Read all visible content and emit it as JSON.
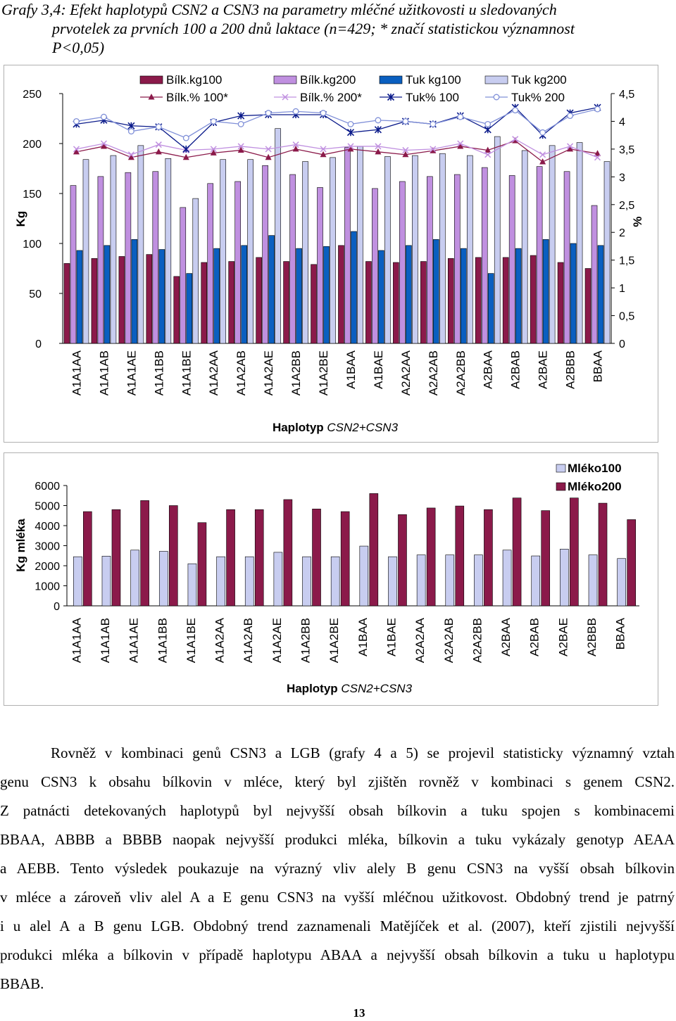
{
  "caption": {
    "line1": "Grafy 3,4: Efekt haplotypů CSN2 a CSN3 na parametry mléčné užitkovosti u sledovaných",
    "line2": "prvotelek za prvních 100 a 200 dnů laktace (n=429; * značí statistickou významnost",
    "line3": "P<0,05)"
  },
  "chart_data": [
    {
      "type": "bar",
      "ylabel": "Kg",
      "y2label": "%",
      "xlabel": "Haplotyp CSN2+CSN3",
      "ylim": [
        0,
        250
      ],
      "y2lim": [
        0,
        4.5
      ],
      "yticks": [
        "0",
        "50",
        "100",
        "150",
        "200",
        "250"
      ],
      "y2ticks": [
        "0",
        "0,5",
        "1",
        "1,5",
        "2",
        "2,5",
        "3",
        "3,5",
        "4",
        "4,5"
      ],
      "categories": [
        "A1A1AA",
        "A1A1AB",
        "A1A1AE",
        "A1A1BB",
        "A1A1BE",
        "A1A2AA",
        "A1A2AB",
        "A1A2AE",
        "A1A2BB",
        "A1A2BE",
        "A1BAA",
        "A1BAE",
        "A2A2AA",
        "A2A2AB",
        "A2A2BB",
        "A2BAA",
        "A2BAB",
        "A2BAE",
        "A2BBB",
        "BBAA"
      ],
      "bar_series": [
        {
          "name": "Bílk.kg100",
          "color": "#8b1a4a",
          "values": [
            80,
            85,
            87,
            89,
            67,
            81,
            82,
            86,
            82,
            79,
            98,
            82,
            81,
            82,
            85,
            86,
            86,
            88,
            81,
            75
          ]
        },
        {
          "name": "Bílk.kg200",
          "color": "#c090e0",
          "values": [
            158,
            167,
            171,
            172,
            136,
            160,
            162,
            178,
            169,
            156,
            196,
            155,
            162,
            167,
            169,
            176,
            168,
            177,
            172,
            138
          ]
        },
        {
          "name": "Tuk kg100",
          "color": "#0a5fc0",
          "values": [
            93,
            98,
            104,
            94,
            70,
            95,
            98,
            108,
            95,
            97,
            112,
            93,
            98,
            104,
            95,
            70,
            95,
            104,
            100,
            98
          ]
        },
        {
          "name": "Tuk kg200",
          "color": "#c8cdf0",
          "values": [
            184,
            188,
            198,
            185,
            145,
            184,
            184,
            215,
            182,
            186,
            197,
            187,
            188,
            190,
            188,
            207,
            193,
            198,
            201,
            182
          ]
        }
      ],
      "line_series": [
        {
          "name": "Bílk.% 100*",
          "color": "#8b1a4a",
          "marker": "triangle",
          "values": [
            3.45,
            3.55,
            3.35,
            3.45,
            3.35,
            3.43,
            3.48,
            3.35,
            3.5,
            3.4,
            3.5,
            3.45,
            3.4,
            3.47,
            3.55,
            3.48,
            3.65,
            3.27,
            3.5,
            3.42
          ]
        },
        {
          "name": "Bílk.% 200*",
          "color": "#c090e0",
          "marker": "x",
          "values": [
            3.5,
            3.6,
            3.4,
            3.58,
            3.48,
            3.5,
            3.55,
            3.5,
            3.58,
            3.5,
            3.55,
            3.55,
            3.48,
            3.5,
            3.6,
            3.4,
            3.68,
            3.4,
            3.55,
            3.35
          ]
        },
        {
          "name": "Tuk% 100",
          "color": "#0a1a8a",
          "marker": "asterisk",
          "values": [
            3.95,
            4.02,
            3.92,
            3.9,
            3.5,
            3.98,
            4.1,
            4.12,
            4.12,
            4.12,
            3.8,
            3.85,
            4,
            3.95,
            4.1,
            3.85,
            4.25,
            3.75,
            4.15,
            4.25
          ]
        },
        {
          "name": "Tuk% 200",
          "color": "#8090d8",
          "marker": "circle",
          "values": [
            4,
            4.08,
            3.82,
            3.9,
            3.7,
            4,
            3.95,
            4.15,
            4.18,
            4.15,
            3.95,
            4.02,
            4,
            3.95,
            4.08,
            3.95,
            4.2,
            3.8,
            4.1,
            4.22
          ]
        }
      ]
    },
    {
      "type": "bar",
      "ylabel": "Kg mléka",
      "xlabel": "Haplotyp CSN2+CSN3",
      "ylim": [
        0,
        6000
      ],
      "yticks": [
        "0",
        "1000",
        "2000",
        "3000",
        "4000",
        "5000",
        "6000"
      ],
      "categories": [
        "A1A1AA",
        "A1A1AB",
        "A1A1AE",
        "A1A1BB",
        "A1A1BE",
        "A1A2AA",
        "A1A2AB",
        "A1A2AE",
        "A1A2BB",
        "A1A2BE",
        "A1BAA",
        "A1BAE",
        "A2A2AA",
        "A2A2AB",
        "A2A2BB",
        "A2BAA",
        "A2BAB",
        "A2BAE",
        "A2BBB",
        "BBAA"
      ],
      "series": [
        {
          "name": "Mléko100",
          "color": "#c8cdf0",
          "values": [
            2450,
            2480,
            2780,
            2720,
            2100,
            2450,
            2450,
            2670,
            2450,
            2450,
            2980,
            2450,
            2540,
            2540,
            2540,
            2780,
            2490,
            2830,
            2540,
            2360
          ]
        },
        {
          "name": "Mléko200",
          "color": "#8b1a4a",
          "values": [
            4700,
            4800,
            5250,
            5000,
            4150,
            4800,
            4800,
            5300,
            4830,
            4700,
            5600,
            4550,
            4880,
            4980,
            4800,
            5380,
            4750,
            5380,
            5120,
            4300
          ]
        }
      ]
    }
  ],
  "paragraph": {
    "lines": [
      "Rovněž v kombinaci genů CSN3 a LGB (grafy 4 a 5) se projevil statisticky významný vztah",
      "genu CSN3 k obsahu bílkovin v mléce, který byl zjištěn rovněž v kombinaci s genem CSN2.",
      "Z patnácti detekovaných haplotypů byl nejvyšší obsah bílkovin a tuku spojen s kombinacemi",
      "BBAA, ABBB a BBBB naopak nejvyšší produkci mléka, bílkovin a tuku vykázaly genotyp AEAA",
      "a AEBB. Tento výsledek poukazuje na výrazný vliv alely B genu CSN3 na vyšší obsah bílkovin",
      "v mléce a zároveň vliv alel A a E genu CSN3 na vyšší mléčnou užitkovost. Obdobný trend je patrný",
      "i u alel A a B genu LGB. Obdobný trend zaznamenali Matějíček et al. (2007), kteří zjistili nejvyšší",
      "produkci mléka a bílkovin v případě haplotypu ABAA a nejvyšší obsah bílkovin a tuku u haplotypu",
      "BBAB."
    ]
  },
  "page_number": "13"
}
